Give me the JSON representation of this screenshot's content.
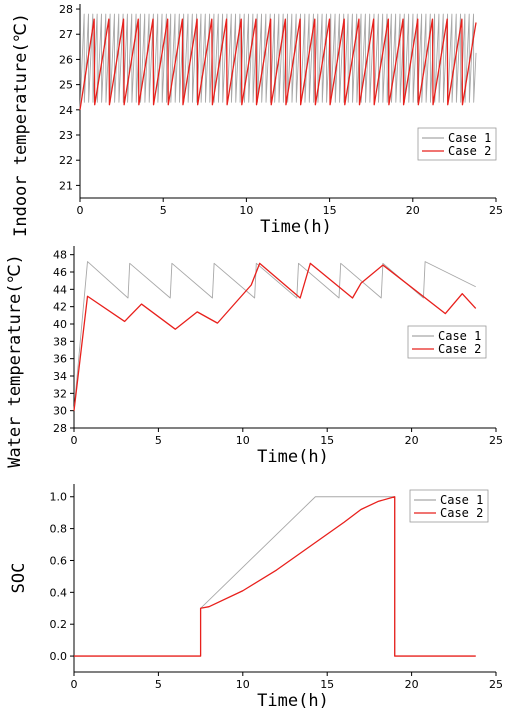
{
  "chart_data": [
    {
      "type": "line",
      "xlabel": "Time(h)",
      "ylabel": "Indoor temperature(℃)",
      "xlim": [
        0,
        25
      ],
      "ylim": [
        20.5,
        28.2
      ],
      "xticks": [
        "0",
        "5",
        "10",
        "15",
        "20",
        "25"
      ],
      "yticks": [
        "21",
        "22",
        "23",
        "24",
        "25",
        "26",
        "27",
        "28"
      ],
      "legend_position": "right-middle",
      "series": [
        {
          "name": "Case 1",
          "color": "#a8a8a8",
          "pattern": "sawtooth",
          "low": 24.3,
          "high": 27.8,
          "start": 24.0,
          "period_h": 0.25,
          "x_end": 23.8
        },
        {
          "name": "Case 2",
          "color": "#e8201c",
          "pattern": "sawtooth",
          "low": 24.2,
          "high": 27.6,
          "start": 24.0,
          "period_h": 0.85,
          "x_end": 23.8
        }
      ]
    },
    {
      "type": "line",
      "xlabel": "Time(h)",
      "ylabel": "Water temperature(℃)",
      "xlim": [
        0,
        25
      ],
      "ylim": [
        28,
        49
      ],
      "xticks": [
        "0",
        "5",
        "10",
        "15",
        "20",
        "25"
      ],
      "yticks": [
        "28",
        "30",
        "32",
        "34",
        "36",
        "38",
        "40",
        "42",
        "44",
        "46",
        "48"
      ],
      "legend_position": "right-middle",
      "series": [
        {
          "name": "Case 1",
          "color": "#a8a8a8",
          "x": [
            0,
            0.8,
            3.2,
            3.3,
            5.7,
            5.8,
            8.2,
            8.3,
            10.7,
            10.8,
            13.2,
            13.3,
            15.7,
            15.8,
            18.2,
            18.3,
            20.7,
            20.8,
            23.8
          ],
          "y": [
            30,
            47.2,
            43.0,
            47.0,
            43.0,
            47.0,
            43.0,
            47.0,
            43.0,
            47.0,
            43.0,
            47.0,
            43.0,
            47.0,
            43.0,
            47.0,
            43.0,
            47.2,
            44.3
          ]
        },
        {
          "name": "Case 2",
          "color": "#e8201c",
          "x": [
            0,
            0.8,
            3.0,
            4.0,
            6.0,
            7.3,
            8.5,
            10.5,
            11.0,
            13.4,
            14.0,
            16.5,
            17.0,
            18.3,
            22.0,
            23.0,
            23.8
          ],
          "y": [
            30,
            43.2,
            40.3,
            42.3,
            39.4,
            41.4,
            40.1,
            44.5,
            47.0,
            43.0,
            47.0,
            43.0,
            44.7,
            46.8,
            41.2,
            43.5,
            41.8
          ]
        }
      ]
    },
    {
      "type": "line",
      "xlabel": "Time(h)",
      "ylabel": "SOC",
      "xlim": [
        0,
        25
      ],
      "ylim": [
        -0.1,
        1.08
      ],
      "xticks": [
        "0",
        "5",
        "10",
        "15",
        "20",
        "25"
      ],
      "yticks": [
        "0.0",
        "0.2",
        "0.4",
        "0.6",
        "0.8",
        "1.0"
      ],
      "legend_position": "top-right",
      "series": [
        {
          "name": "Case 1",
          "color": "#a8a8a8",
          "x": [
            0,
            7.5,
            7.5,
            14.3,
            19.0,
            19.0,
            23.8
          ],
          "y": [
            0,
            0,
            0.3,
            1.0,
            1.0,
            0,
            0
          ]
        },
        {
          "name": "Case 2",
          "color": "#e8201c",
          "x": [
            0,
            7.5,
            7.5,
            8.0,
            10.0,
            12.0,
            14.0,
            16.0,
            17.0,
            18.0,
            19.0,
            19.0,
            23.8
          ],
          "y": [
            0,
            0,
            0.3,
            0.31,
            0.41,
            0.54,
            0.69,
            0.84,
            0.92,
            0.97,
            1.0,
            0,
            0
          ]
        }
      ]
    }
  ]
}
